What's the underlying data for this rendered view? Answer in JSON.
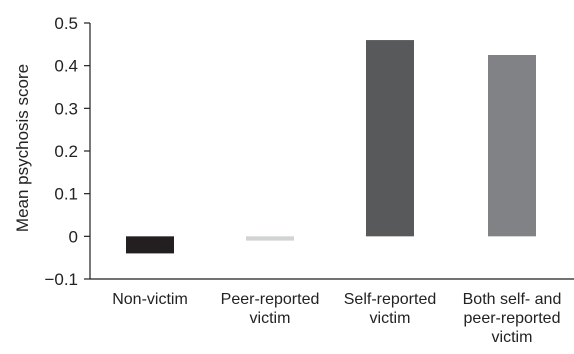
{
  "chart_data": {
    "type": "bar",
    "title": "",
    "xlabel": "",
    "ylabel": "Mean psychosis score",
    "ylim": [
      -0.1,
      0.5
    ],
    "yticks": [
      "0.5",
      "0.4",
      "0.3",
      "0.2",
      "0.1",
      "0",
      "−0.1"
    ],
    "ytick_values": [
      0.5,
      0.4,
      0.3,
      0.2,
      0.1,
      0,
      -0.1
    ],
    "grid": false,
    "legend": "none",
    "categories": [
      [
        "Non-victim"
      ],
      [
        "Peer-reported",
        "victim"
      ],
      [
        "Self-reported",
        "victim"
      ],
      [
        "Both self- and",
        "peer-reported",
        "victim"
      ]
    ],
    "values": [
      -0.04,
      -0.01,
      0.46,
      0.425
    ],
    "colors": [
      "#231f20",
      "#d1d3d4",
      "#58595b",
      "#808285"
    ]
  }
}
